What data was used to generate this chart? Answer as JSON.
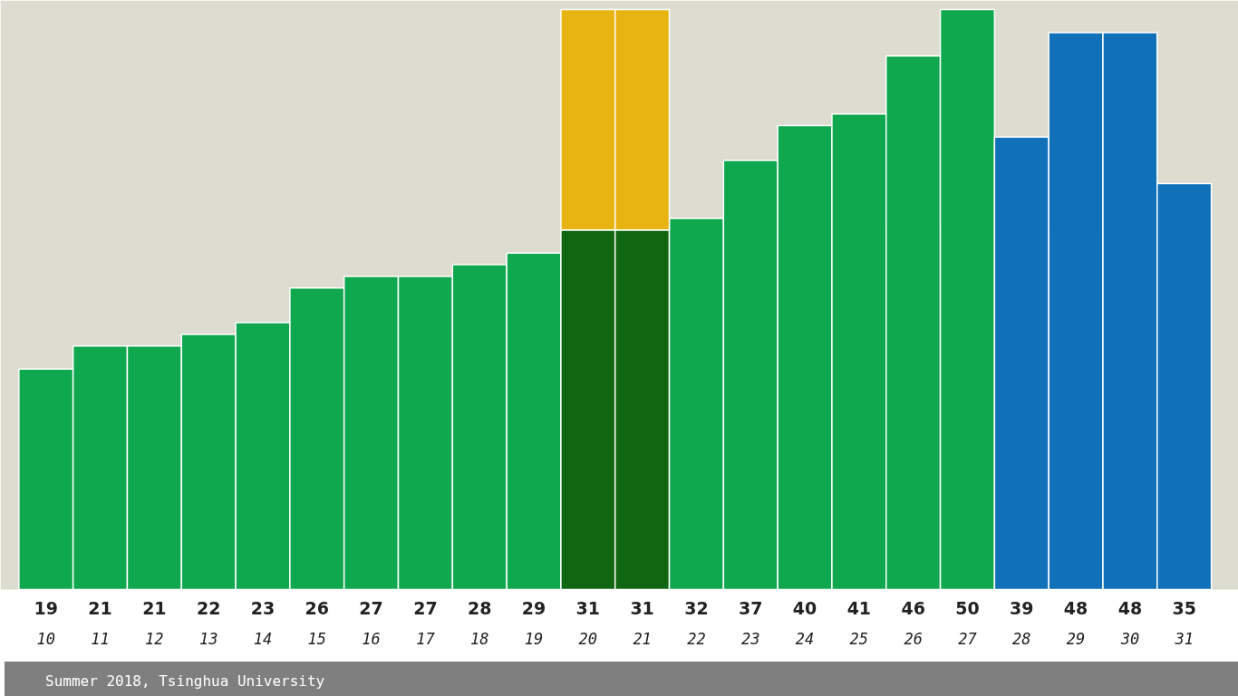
{
  "chart_data": {
    "type": "bar",
    "stacked": true,
    "grid": false,
    "categories": [
      "10",
      "11",
      "12",
      "13",
      "14",
      "15",
      "16",
      "17",
      "18",
      "19",
      "20",
      "21",
      "22",
      "23",
      "24",
      "25",
      "26",
      "27",
      "28",
      "29",
      "30",
      "31"
    ],
    "series": [
      {
        "values": [
          19,
          21,
          21,
          22,
          23,
          26,
          27,
          27,
          28,
          29,
          31,
          31,
          32,
          37,
          40,
          41,
          46,
          50,
          39,
          48,
          48,
          35
        ],
        "value_labels": [
          "19",
          "21",
          "21",
          "22",
          "23",
          "26",
          "27",
          "27",
          "28",
          "29",
          "31",
          "31",
          "32",
          "37",
          "40",
          "41",
          "46",
          "50",
          "39",
          "48",
          "48",
          "35"
        ],
        "colors": [
          "#10a84f",
          "#10a84f",
          "#10a84f",
          "#10a84f",
          "#10a84f",
          "#10a84f",
          "#10a84f",
          "#10a84f",
          "#10a84f",
          "#10a84f",
          "#116611",
          "#116611",
          "#10a84f",
          "#10a84f",
          "#10a84f",
          "#10a84f",
          "#10a84f",
          "#10a84f",
          "#1070b8",
          "#1070b8",
          "#1070b8",
          "#1070b8"
        ]
      },
      {
        "color": "#e8b412",
        "values": [
          null,
          null,
          null,
          null,
          null,
          null,
          null,
          null,
          null,
          null,
          19,
          19,
          null,
          null,
          null,
          null,
          null,
          null,
          null,
          null,
          null,
          null
        ]
      }
    ],
    "annotations": [
      "Summer 2018, Tsinghua University"
    ]
  }
}
